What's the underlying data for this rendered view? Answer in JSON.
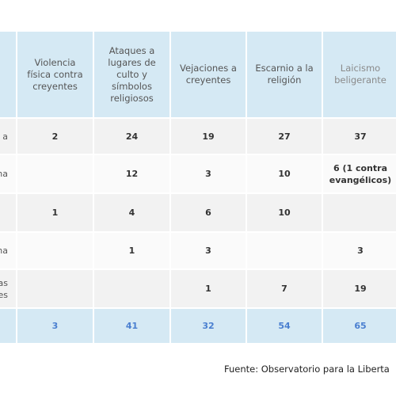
{
  "table": {
    "headers": [
      "Violencia física contra creyentes",
      "Ataques a lugares de culto y símbolos religiosos",
      "Vejaciones a creyentes",
      "Escarnio a la religión",
      "Laicismo beligerante"
    ],
    "rows": [
      {
        "label": "a",
        "cells": [
          "2",
          "24",
          "19",
          "27",
          "37"
        ]
      },
      {
        "label": "na",
        "cells": [
          null,
          "12",
          "3",
          "10",
          "6 (1 contra evangélicos)"
        ]
      },
      {
        "label": null,
        "cells": [
          "1",
          "4",
          "6",
          "10",
          null
        ]
      },
      {
        "label": "na",
        "cells": [
          null,
          "1",
          "3",
          null,
          "3"
        ]
      },
      {
        "label": "as nes",
        "cells": [
          null,
          null,
          "1",
          "7",
          "19"
        ]
      }
    ],
    "total": [
      "3",
      "41",
      "32",
      "54",
      "65"
    ]
  },
  "footer": {
    "source": "Fuente: Observatorio para la Liberta"
  }
}
